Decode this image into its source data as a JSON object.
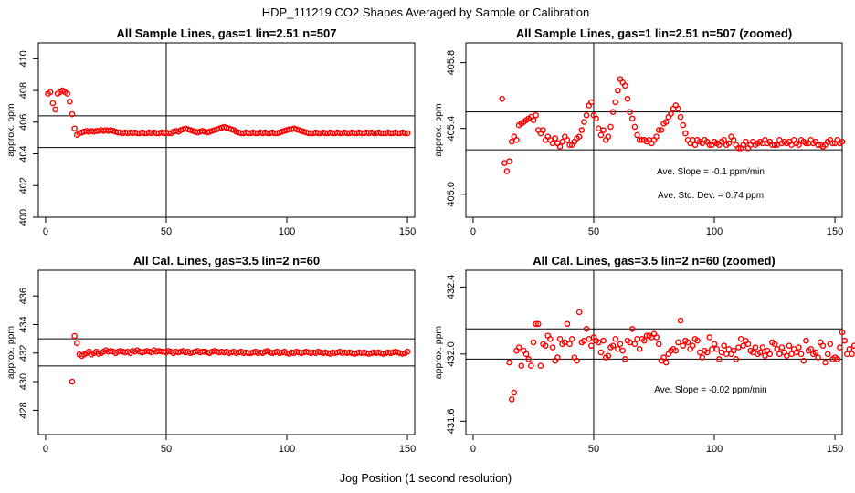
{
  "figure": {
    "title": "HDP_111219  CO2 Shapes Averaged by Sample or Calibration",
    "xlabel": "Jog Position (1 second resolution)"
  },
  "chart_data": [
    {
      "type": "scatter",
      "title": "All Sample Lines, gas=1 lin=2.51 n=507",
      "ylabel": "approx. ppm",
      "xlim": [
        -3,
        153
      ],
      "ylim": [
        400,
        411
      ],
      "xticks": [
        0,
        50,
        100,
        150
      ],
      "yticks": [
        400,
        402,
        404,
        406,
        408,
        410
      ],
      "vlines": [
        50
      ],
      "hlines": [
        404.4,
        406.4
      ],
      "marker_color": "#ff0000",
      "annotations": [],
      "x_start": 1,
      "values": [
        407.8,
        407.9,
        407.2,
        406.8,
        407.8,
        407.9,
        408.0,
        407.9,
        407.8,
        407.3,
        406.5,
        405.6,
        405.2,
        405.3,
        405.35,
        405.4,
        405.45,
        405.4,
        405.45,
        405.4,
        405.45,
        405.45,
        405.5,
        405.45,
        405.5,
        405.45,
        405.5,
        405.45,
        405.4,
        405.35,
        405.35,
        405.3,
        405.35,
        405.3,
        405.35,
        405.3,
        405.35,
        405.3,
        405.3,
        405.35,
        405.3,
        405.3,
        405.35,
        405.3,
        405.35,
        405.3,
        405.3,
        405.35,
        405.3,
        405.35,
        405.3,
        405.3,
        405.4,
        405.45,
        405.4,
        405.5,
        405.55,
        405.6,
        405.55,
        405.5,
        405.45,
        405.4,
        405.35,
        405.4,
        405.45,
        405.4,
        405.35,
        405.4,
        405.45,
        405.5,
        405.55,
        405.6,
        405.65,
        405.7,
        405.65,
        405.6,
        405.55,
        405.5,
        405.4,
        405.35,
        405.3,
        405.3,
        405.35,
        405.3,
        405.3,
        405.35,
        405.3,
        405.3,
        405.35,
        405.3,
        405.35,
        405.3,
        405.3,
        405.35,
        405.3,
        405.3,
        405.35,
        405.4,
        405.45,
        405.5,
        405.55,
        405.55,
        405.6,
        405.55,
        405.5,
        405.45,
        405.4,
        405.35,
        405.3,
        405.3,
        405.3,
        405.35,
        405.3,
        405.3,
        405.35,
        405.3,
        405.3,
        405.35,
        405.3,
        405.3,
        405.35,
        405.3,
        405.3,
        405.35,
        405.3,
        405.3,
        405.35,
        405.3,
        405.3,
        405.35,
        405.3,
        405.3,
        405.35,
        405.3,
        405.35,
        405.3,
        405.3,
        405.35,
        405.3,
        405.3,
        405.3,
        405.35,
        405.3,
        405.3,
        405.35,
        405.3,
        405.3,
        405.35,
        405.3,
        405.3
      ]
    },
    {
      "type": "scatter",
      "title": "All Sample Lines, gas=1 lin=2.51 n=507 (zoomed)",
      "ylabel": "approx. ppm",
      "xlim": [
        -3,
        153
      ],
      "ylim": [
        404.86,
        405.92
      ],
      "xticks": [
        0,
        50,
        100,
        150
      ],
      "yticks": [
        405.0,
        405.4,
        405.8
      ],
      "ytick_labels": [
        "405.0",
        "405.4",
        "405.8"
      ],
      "vlines": [
        50
      ],
      "hlines": [
        405.27,
        405.5
      ],
      "marker_color": "#ff0000",
      "annotations": [
        "Ave. Slope =  -0.1  ppm/min",
        "Ave. Std. Dev. =  0.74  ppm"
      ],
      "x_start": 12,
      "values": [
        405.58,
        405.19,
        405.14,
        405.2,
        405.32,
        405.35,
        405.33,
        405.42,
        405.43,
        405.44,
        405.45,
        405.46,
        405.47,
        405.45,
        405.48,
        405.39,
        405.37,
        405.39,
        405.33,
        405.35,
        405.33,
        405.31,
        405.34,
        405.31,
        405.29,
        405.32,
        405.35,
        405.33,
        405.3,
        405.3,
        405.32,
        405.34,
        405.35,
        405.39,
        405.44,
        405.48,
        405.54,
        405.56,
        405.48,
        405.46,
        405.4,
        405.36,
        405.39,
        405.33,
        405.35,
        405.41,
        405.5,
        405.56,
        405.63,
        405.7,
        405.68,
        405.66,
        405.58,
        405.5,
        405.46,
        405.41,
        405.36,
        405.33,
        405.33,
        405.33,
        405.32,
        405.33,
        405.31,
        405.33,
        405.35,
        405.39,
        405.39,
        405.43,
        405.44,
        405.47,
        405.49,
        405.52,
        405.54,
        405.52,
        405.47,
        405.42,
        405.37,
        405.33,
        405.31,
        405.33,
        405.3,
        405.33,
        405.32,
        405.31,
        405.33,
        405.32,
        405.3,
        405.3,
        405.32,
        405.31,
        405.3,
        405.32,
        405.33,
        405.3,
        405.31,
        405.35,
        405.33,
        405.3,
        405.28,
        405.28,
        405.3,
        405.32,
        405.28,
        405.3,
        405.32,
        405.3,
        405.31,
        405.32,
        405.31,
        405.33,
        405.31,
        405.32,
        405.3,
        405.3,
        405.3,
        405.33,
        405.31,
        405.32,
        405.31,
        405.32,
        405.3,
        405.33,
        405.31,
        405.3,
        405.33,
        405.32,
        405.31,
        405.31,
        405.33,
        405.31,
        405.32,
        405.3,
        405.3,
        405.29,
        405.3,
        405.32,
        405.33,
        405.31,
        405.31,
        405.33,
        405.31,
        405.32
      ]
    },
    {
      "type": "scatter",
      "title": "All Cal. Lines, gas=3.5 lin=2 n=60",
      "ylabel": "approx. ppm",
      "xlim": [
        -3,
        153
      ],
      "ylim": [
        426.3,
        437.8
      ],
      "xticks": [
        0,
        50,
        100,
        150
      ],
      "yticks": [
        428,
        430,
        432,
        434,
        436
      ],
      "vlines": [
        50
      ],
      "hlines": [
        431.1,
        433.0
      ],
      "marker_color": "#ff0000",
      "annotations": [],
      "x_start": 11,
      "values": [
        430.0,
        433.2,
        432.7,
        431.9,
        431.8,
        431.9,
        432.0,
        432.1,
        431.9,
        432.0,
        432.1,
        431.95,
        432.0,
        432.1,
        432.2,
        432.1,
        432.15,
        432.1,
        432.0,
        432.1,
        432.15,
        432.1,
        432.05,
        432.1,
        432.0,
        432.15,
        432.1,
        432.2,
        432.1,
        432.05,
        432.1,
        432.15,
        432.1,
        432.05,
        432.2,
        432.1,
        432.15,
        432.1,
        432.1,
        432.05,
        432.15,
        432.1,
        432.0,
        432.1,
        432.05,
        432.1,
        432.15,
        432.05,
        432.1,
        432.0,
        432.05,
        432.1,
        432.15,
        432.05,
        432.1,
        432.1,
        432.05,
        432.0,
        432.1,
        432.15,
        432.1,
        432.05,
        432.1,
        432.05,
        432.1,
        432.0,
        432.05,
        432.1,
        432.0,
        432.05,
        432.1,
        432.0,
        432.05,
        432.0,
        432.0,
        432.05,
        432.1,
        432.0,
        432.05,
        432.0,
        432.1,
        432.15,
        432.05,
        432.0,
        432.05,
        432.1,
        432.0,
        432.05,
        432.1,
        432.0,
        431.95,
        432.05,
        432.0,
        432.1,
        432.05,
        432.0,
        432.05,
        432.1,
        432.05,
        432.0,
        432.05,
        432.0,
        432.1,
        432.05,
        432.0,
        432.05,
        432.0,
        431.95,
        432.05,
        432.0,
        432.05,
        432.1,
        432.0,
        432.05,
        432.0,
        432.05,
        432.0,
        431.95,
        432.0,
        432.05,
        432.0,
        432.05,
        432.0,
        431.95,
        432.0,
        432.05,
        432.0,
        432.05,
        432.0,
        431.95,
        432.0,
        432.05,
        432.0,
        432.05,
        432.1,
        432.05,
        432.0,
        431.95,
        432.0,
        432.1
      ]
    },
    {
      "type": "scatter",
      "title": "All Cal. Lines, gas=3.5 lin=2 n=60 (zoomed)",
      "ylabel": "approx. ppm",
      "xlim": [
        -3,
        153
      ],
      "ylim": [
        431.52,
        432.5
      ],
      "xticks": [
        0,
        50,
        100,
        150
      ],
      "yticks": [
        431.6,
        432.0,
        432.4
      ],
      "ytick_labels": [
        "431.6",
        "432.0",
        "432.4"
      ],
      "vlines": [
        50
      ],
      "hlines": [
        431.97,
        432.15
      ],
      "marker_color": "#ff0000",
      "annotations": [
        "Ave. Slope =  -0.02  ppm/min"
      ],
      "x_start": 15,
      "values": [
        431.95,
        431.73,
        431.77,
        432.02,
        432.04,
        431.93,
        432.02,
        432.0,
        431.97,
        431.93,
        432.07,
        432.18,
        432.18,
        431.93,
        432.06,
        432.05,
        432.11,
        432.09,
        432.04,
        431.96,
        431.98,
        432.09,
        432.06,
        432.07,
        432.18,
        432.06,
        432.09,
        431.98,
        431.96,
        432.25,
        432.07,
        432.08,
        432.15,
        432.09,
        432.05,
        432.1,
        432.08,
        432.07,
        432.01,
        432.08,
        431.98,
        431.99,
        432.04,
        432.05,
        432.09,
        432.03,
        432.06,
        432.02,
        431.97,
        432.08,
        432.07,
        432.15,
        432.06,
        432.09,
        432.03,
        432.09,
        432.08,
        432.11,
        432.11,
        432.1,
        432.12,
        432.1,
        432.06,
        431.96,
        431.98,
        431.95,
        432.0,
        432.02,
        432.03,
        432.02,
        432.07,
        432.2,
        432.05,
        432.08,
        432.07,
        432.03,
        432.05,
        432.09,
        432.08,
        432.01,
        431.98,
        432.02,
        432.01,
        432.1,
        432.03,
        432.06,
        432.03,
        431.97,
        432.01,
        432.05,
        432.0,
        432.03,
        432.0,
        432.02,
        431.97,
        432.04,
        432.09,
        432.05,
        432.08,
        432.06,
        432.02,
        432.01,
        432.04,
        432.0,
        432.01,
        432.04,
        431.99,
        432.02,
        432.0,
        432.07,
        432.06,
        432.03,
        432.0,
        432.04,
        432.01,
        431.99,
        432.05,
        432.0,
        432.03,
        432.01,
        432.04,
        432.0,
        431.96,
        432.08,
        432.02,
        432.03,
        432.0,
        432.01,
        431.98,
        432.07,
        432.05,
        431.95,
        432.0,
        432.06,
        431.97,
        431.98,
        431.97,
        432.04,
        432.13,
        432.08,
        432.0,
        432.03,
        432.0,
        432.05
      ]
    }
  ]
}
